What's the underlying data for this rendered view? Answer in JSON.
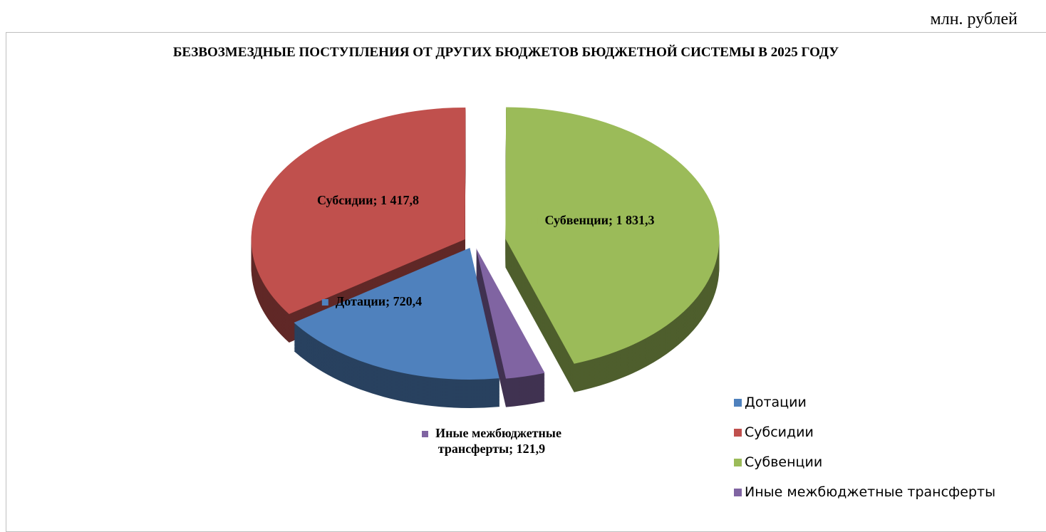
{
  "chart_data": {
    "type": "pie3d",
    "title": "БЕЗВОЗМЕЗДНЫЕ ПОСТУПЛЕНИЯ ОТ ДРУГИХ БЮДЖЕТОВ БЮДЖЕТНОЙ СИСТЕМЫ В 2025 ГОДУ",
    "unit": "млн. рублей",
    "categories": [
      "Дотации",
      "Субсидии",
      "Субвенции",
      "Иные межбюджетные трансферты"
    ],
    "values": [
      720.4,
      1417.8,
      1831.3,
      121.9
    ],
    "value_labels": [
      "Дотации; 720,4",
      "Субсидии; 1 417,8",
      "Субвенции; 1 831,3",
      "Иные межбюджетные трансферты; 121,9"
    ],
    "colors": [
      "#4f81bd",
      "#c0504d",
      "#9bbb59",
      "#8064a2"
    ],
    "legend": "right"
  }
}
